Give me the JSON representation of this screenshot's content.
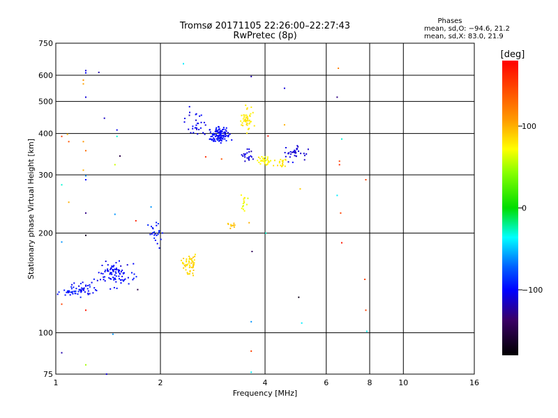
{
  "chart_data": {
    "type": "scatter",
    "title": "Tromsø 20171105 22:26:00–22:27:43",
    "subtitle": "RwPretec (8p)",
    "xlabel": "Frequency [MHz]",
    "ylabel": "Stationary phase Virtual Height [km]",
    "x_scale": "log",
    "y_scale": "log",
    "xlim": [
      1,
      16
    ],
    "ylim": [
      75,
      750
    ],
    "x_ticks": [
      {
        "value": 1,
        "label": "1"
      },
      {
        "value": 2,
        "label": "2"
      },
      {
        "value": 4,
        "label": "4"
      },
      {
        "value": 6,
        "label": "6"
      },
      {
        "value": 8,
        "label": "8"
      },
      {
        "value": 10,
        "label": "10"
      },
      {
        "value": 16,
        "label": "16"
      }
    ],
    "y_ticks": [
      {
        "value": 75,
        "label": "75"
      },
      {
        "value": 100,
        "label": "100"
      },
      {
        "value": 200,
        "label": "200"
      },
      {
        "value": 300,
        "label": "300"
      },
      {
        "value": 400,
        "label": "400"
      },
      {
        "value": 500,
        "label": "500"
      },
      {
        "value": 600,
        "label": "600"
      },
      {
        "value": 750,
        "label": "750"
      }
    ],
    "grid": true,
    "stats": {
      "heading": "Phases",
      "line1": "mean, sd,O: −94.6, 21.2",
      "line2": "mean, sd,X:  83.0, 21.9"
    },
    "colorbar": {
      "label": "[deg]",
      "min": -180,
      "max": 180,
      "ticks": [
        {
          "value": 100,
          "label": "100"
        },
        {
          "value": 0,
          "label": "0"
        },
        {
          "value": -100,
          "label": "−100"
        }
      ]
    },
    "clusters": [
      {
        "x": 1.1,
        "y": 133,
        "dx": 0.06,
        "dy": 0.03,
        "phase": -95,
        "spread": 15,
        "n": 30
      },
      {
        "x": 1.22,
        "y": 136,
        "dx": 0.06,
        "dy": 0.03,
        "phase": -100,
        "spread": 15,
        "n": 30
      },
      {
        "x": 1.5,
        "y": 150,
        "dx": 0.08,
        "dy": 0.06,
        "phase": -100,
        "spread": 15,
        "n": 90
      },
      {
        "x": 1.95,
        "y": 200,
        "dx": 0.04,
        "dy": 0.06,
        "phase": -95,
        "spread": 15,
        "n": 25
      },
      {
        "x": 2.45,
        "y": 160,
        "dx": 0.04,
        "dy": 0.05,
        "phase": 85,
        "spread": 15,
        "n": 55
      },
      {
        "x": 2.55,
        "y": 420,
        "dx": 0.05,
        "dy": 0.08,
        "phase": -105,
        "spread": 15,
        "n": 30
      },
      {
        "x": 2.95,
        "y": 395,
        "dx": 0.05,
        "dy": 0.04,
        "phase": -100,
        "spread": 15,
        "n": 110
      },
      {
        "x": 3.2,
        "y": 210,
        "dx": 0.02,
        "dy": 0.02,
        "phase": 95,
        "spread": 10,
        "n": 10
      },
      {
        "x": 3.55,
        "y": 440,
        "dx": 0.03,
        "dy": 0.06,
        "phase": 80,
        "spread": 12,
        "n": 45
      },
      {
        "x": 3.5,
        "y": 250,
        "dx": 0.02,
        "dy": 0.04,
        "phase": 70,
        "spread": 12,
        "n": 14
      },
      {
        "x": 3.55,
        "y": 345,
        "dx": 0.03,
        "dy": 0.03,
        "phase": -110,
        "spread": 15,
        "n": 20
      },
      {
        "x": 3.95,
        "y": 335,
        "dx": 0.03,
        "dy": 0.03,
        "phase": 75,
        "spread": 12,
        "n": 35
      },
      {
        "x": 4.45,
        "y": 325,
        "dx": 0.03,
        "dy": 0.03,
        "phase": 80,
        "spread": 12,
        "n": 18
      },
      {
        "x": 4.9,
        "y": 345,
        "dx": 0.05,
        "dy": 0.05,
        "phase": -110,
        "spread": 15,
        "n": 35
      }
    ],
    "points": [
      {
        "x": 1.22,
        "y": 620,
        "phase": -110
      },
      {
        "x": 1.22,
        "y": 610,
        "phase": -100
      },
      {
        "x": 1.33,
        "y": 612,
        "phase": -120
      },
      {
        "x": 1.2,
        "y": 580,
        "phase": 110
      },
      {
        "x": 1.2,
        "y": 565,
        "phase": 105
      },
      {
        "x": 1.22,
        "y": 515,
        "phase": -110
      },
      {
        "x": 1.38,
        "y": 445,
        "phase": -115
      },
      {
        "x": 1.5,
        "y": 410,
        "phase": -105
      },
      {
        "x": 1.5,
        "y": 392,
        "phase": -30
      },
      {
        "x": 1.08,
        "y": 398,
        "phase": 100
      },
      {
        "x": 1.04,
        "y": 392,
        "phase": 150
      },
      {
        "x": 1.09,
        "y": 378,
        "phase": 140
      },
      {
        "x": 1.2,
        "y": 378,
        "phase": 110
      },
      {
        "x": 1.22,
        "y": 355,
        "phase": 130
      },
      {
        "x": 1.53,
        "y": 342,
        "phase": -150
      },
      {
        "x": 1.48,
        "y": 322,
        "phase": 60
      },
      {
        "x": 1.2,
        "y": 310,
        "phase": 100
      },
      {
        "x": 1.22,
        "y": 298,
        "phase": -60
      },
      {
        "x": 1.22,
        "y": 290,
        "phase": -100
      },
      {
        "x": 1.04,
        "y": 280,
        "phase": -30
      },
      {
        "x": 1.09,
        "y": 248,
        "phase": 100
      },
      {
        "x": 1.48,
        "y": 228,
        "phase": -60
      },
      {
        "x": 1.22,
        "y": 230,
        "phase": -130
      },
      {
        "x": 1.7,
        "y": 218,
        "phase": 165
      },
      {
        "x": 1.88,
        "y": 240,
        "phase": -60
      },
      {
        "x": 1.22,
        "y": 197,
        "phase": -170
      },
      {
        "x": 1.04,
        "y": 188,
        "phase": -60
      },
      {
        "x": 1.72,
        "y": 135,
        "phase": -150
      },
      {
        "x": 1.22,
        "y": 117,
        "phase": 170
      },
      {
        "x": 1.04,
        "y": 122,
        "phase": 150
      },
      {
        "x": 1.46,
        "y": 99,
        "phase": -60
      },
      {
        "x": 1.04,
        "y": 87,
        "phase": -120
      },
      {
        "x": 1.22,
        "y": 80,
        "phase": 50
      },
      {
        "x": 1.4,
        "y": 75,
        "phase": -110
      },
      {
        "x": 2.33,
        "y": 650,
        "phase": -40
      },
      {
        "x": 3.65,
        "y": 595,
        "phase": -120
      },
      {
        "x": 4.55,
        "y": 548,
        "phase": -110
      },
      {
        "x": 4.08,
        "y": 393,
        "phase": 170
      },
      {
        "x": 4.55,
        "y": 425,
        "phase": 100
      },
      {
        "x": 2.7,
        "y": 340,
        "phase": 160
      },
      {
        "x": 3.0,
        "y": 335,
        "phase": 140
      },
      {
        "x": 3.6,
        "y": 215,
        "phase": 100
      },
      {
        "x": 3.67,
        "y": 176,
        "phase": -140
      },
      {
        "x": 4.02,
        "y": 200,
        "phase": -30
      },
      {
        "x": 5.05,
        "y": 272,
        "phase": 90
      },
      {
        "x": 5.0,
        "y": 128,
        "phase": -170
      },
      {
        "x": 5.1,
        "y": 107,
        "phase": -40
      },
      {
        "x": 3.65,
        "y": 108,
        "phase": -60
      },
      {
        "x": 3.65,
        "y": 88,
        "phase": 150
      },
      {
        "x": 3.65,
        "y": 76,
        "phase": -40
      },
      {
        "x": 6.5,
        "y": 630,
        "phase": 120
      },
      {
        "x": 6.45,
        "y": 515,
        "phase": -130
      },
      {
        "x": 6.65,
        "y": 385,
        "phase": -30
      },
      {
        "x": 6.55,
        "y": 330,
        "phase": 150
      },
      {
        "x": 6.55,
        "y": 322,
        "phase": 160
      },
      {
        "x": 6.45,
        "y": 260,
        "phase": -40
      },
      {
        "x": 6.6,
        "y": 230,
        "phase": 150
      },
      {
        "x": 6.65,
        "y": 187,
        "phase": 170
      },
      {
        "x": 7.8,
        "y": 290,
        "phase": 150
      },
      {
        "x": 7.75,
        "y": 145,
        "phase": 150
      },
      {
        "x": 7.8,
        "y": 117,
        "phase": 150
      },
      {
        "x": 7.85,
        "y": 101,
        "phase": -40
      }
    ]
  }
}
